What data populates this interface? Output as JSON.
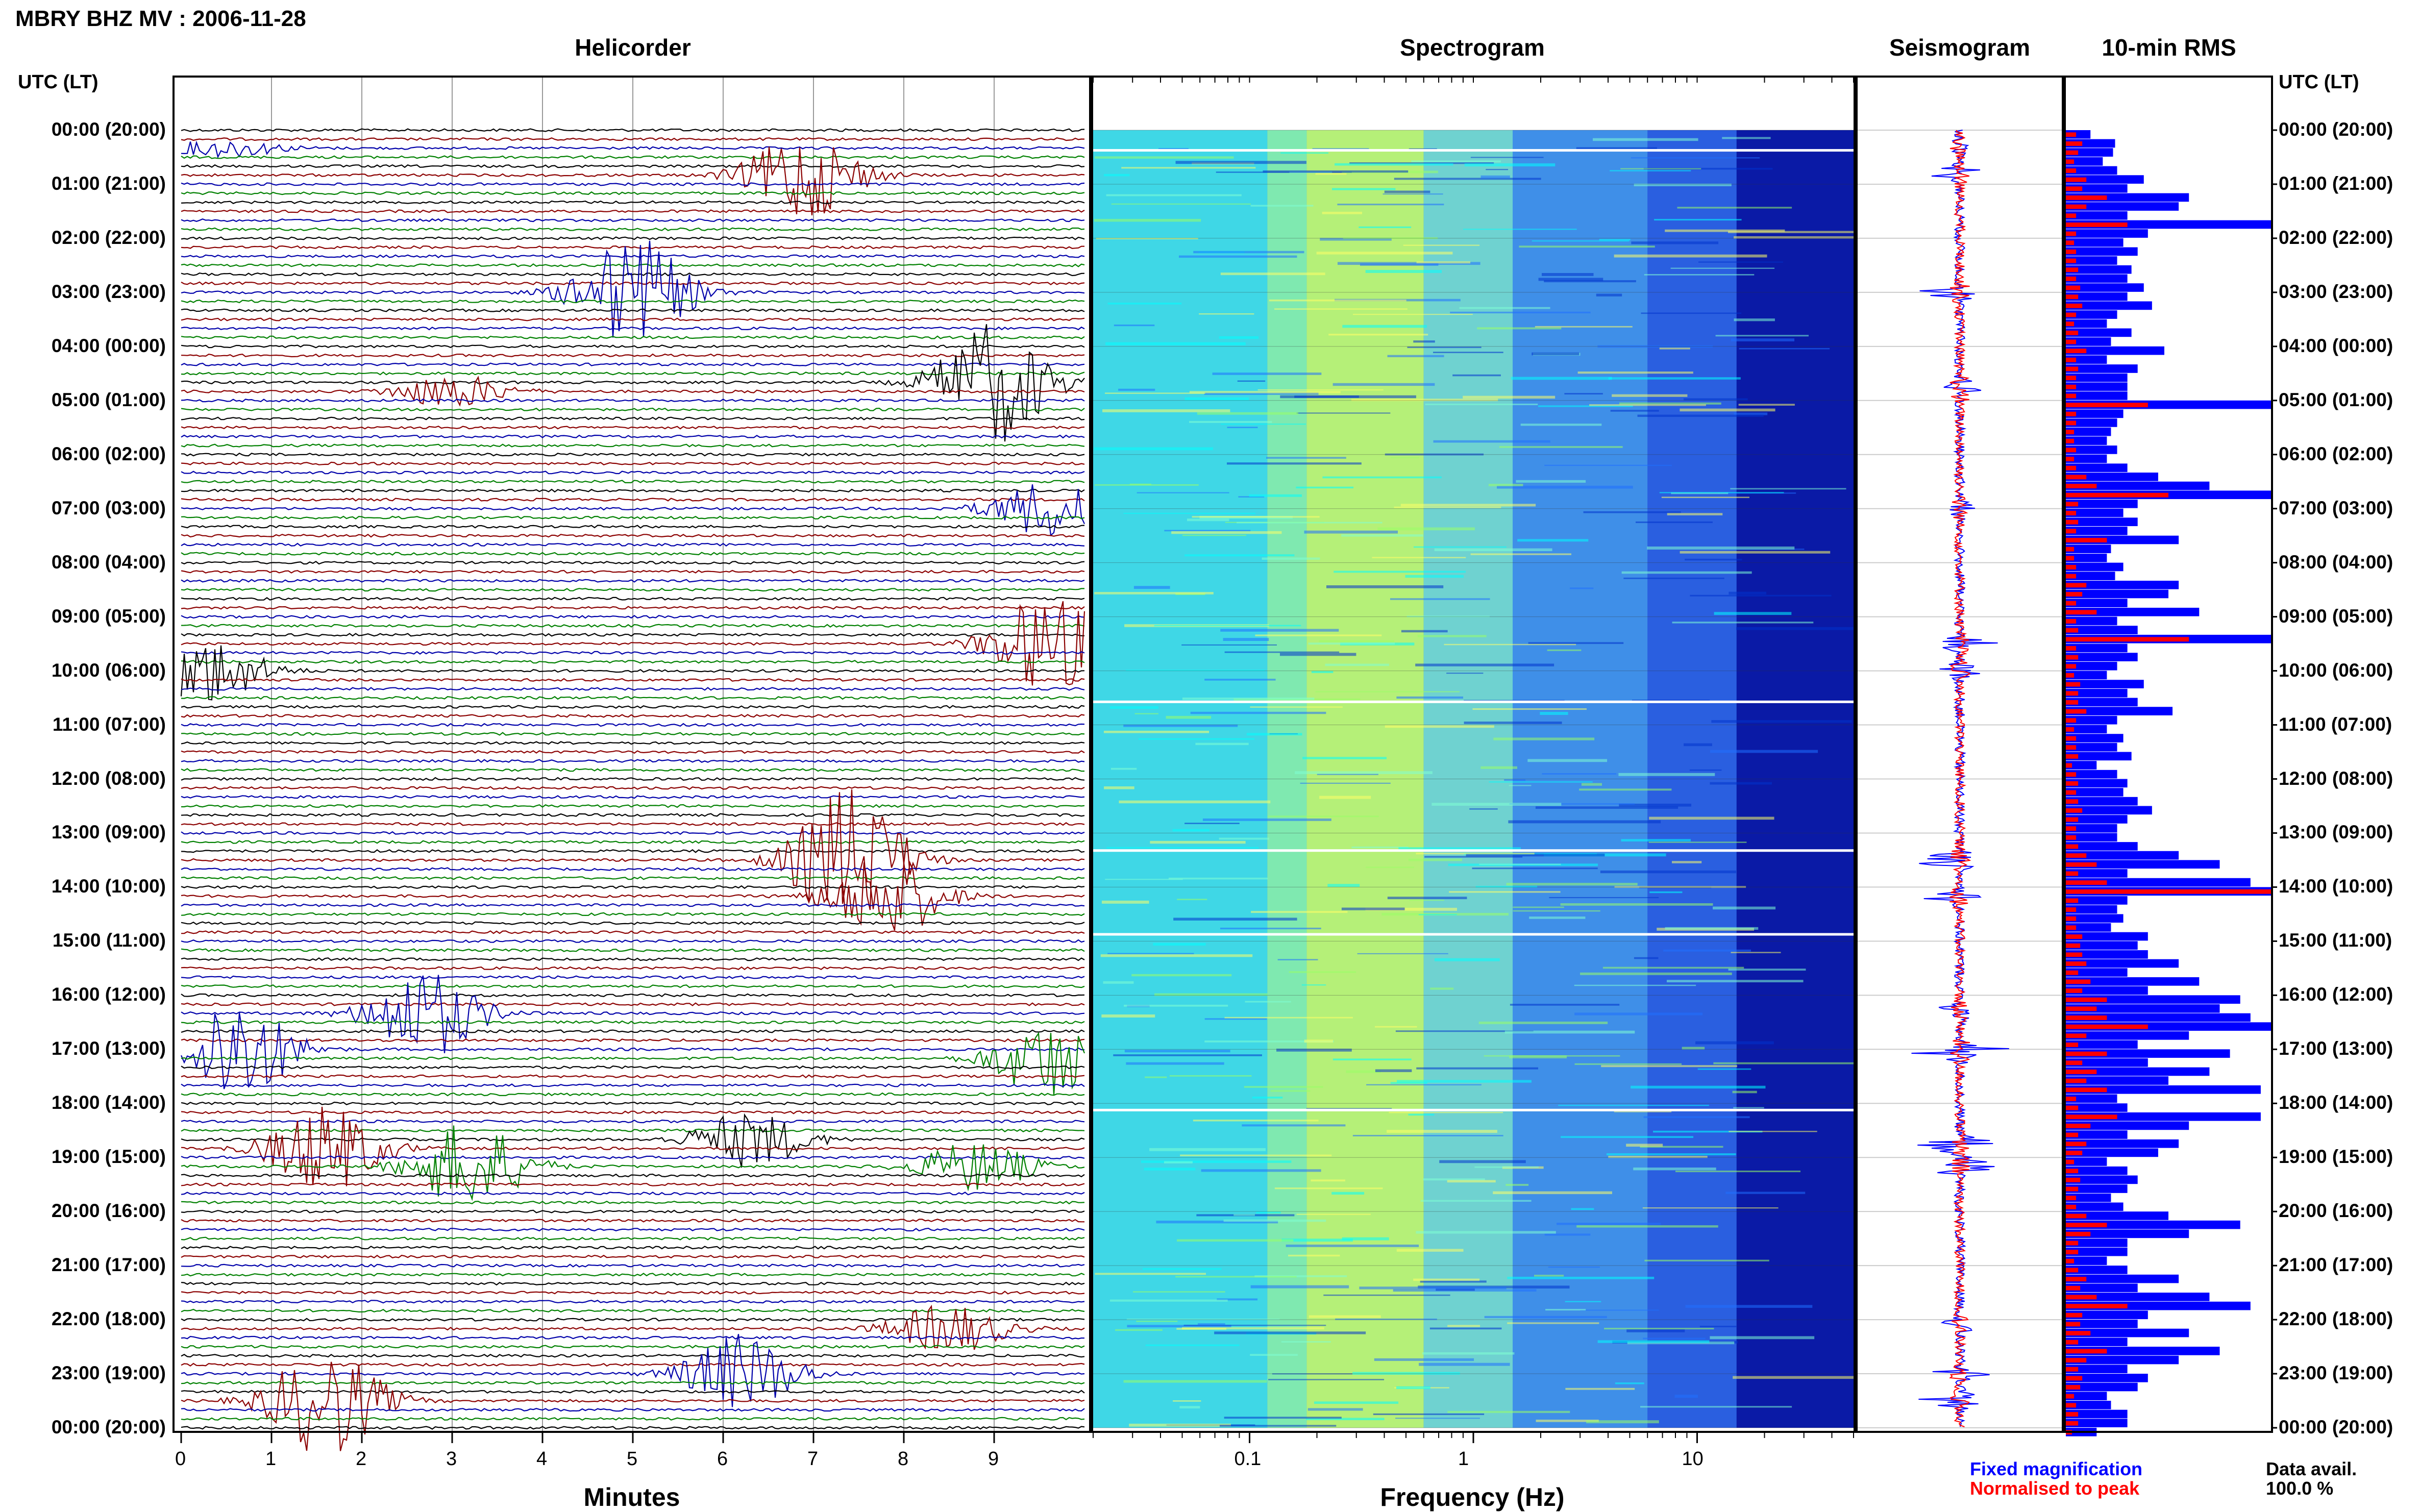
{
  "page": {
    "title": "MBRY BHZ MV : 2006-11-28"
  },
  "panels": {
    "helicorder": "Helicorder",
    "spectrogram": "Spectrogram",
    "seismogram": "Seismogram",
    "rms": "10-min RMS"
  },
  "axes": {
    "utc_header_left": "UTC (LT)",
    "utc_header_right": "UTC (LT)",
    "minutes_label": "Minutes",
    "frequency_label": "Frequency (Hz)",
    "minute_ticks": [
      "0",
      "1",
      "2",
      "3",
      "4",
      "5",
      "6",
      "7",
      "8",
      "9"
    ],
    "freq_ticks": [
      "0.1",
      "1",
      "10"
    ]
  },
  "time_labels": [
    "00:00 (20:00)",
    "01:00 (21:00)",
    "02:00 (22:00)",
    "03:00 (23:00)",
    "04:00 (00:00)",
    "05:00 (01:00)",
    "06:00 (02:00)",
    "07:00 (03:00)",
    "08:00 (04:00)",
    "09:00 (05:00)",
    "10:00 (06:00)",
    "11:00 (07:00)",
    "12:00 (08:00)",
    "13:00 (09:00)",
    "14:00 (10:00)",
    "15:00 (11:00)",
    "16:00 (12:00)",
    "17:00 (13:00)",
    "18:00 (14:00)",
    "19:00 (15:00)",
    "20:00 (16:00)",
    "21:00 (17:00)",
    "22:00 (18:00)",
    "23:00 (19:00)",
    "00:00 (20:00)"
  ],
  "legend": {
    "fixed": "Fixed magnification",
    "normalised": "Normalised to peak",
    "avail_label": "Data avail.",
    "avail_value": "100.0 %"
  },
  "colors": {
    "trace_colors": [
      "#000000",
      "#8b0000",
      "#0000aa",
      "#008000"
    ],
    "rms_fixed": "#0000ff",
    "rms_normalised": "#ff0000"
  },
  "chart_data": [
    {
      "type": "line",
      "title": "Helicorder",
      "xlabel": "Minutes",
      "xlim": [
        0,
        10
      ],
      "rows_per_hour": 6,
      "hours": 24,
      "events": [
        {
          "hour": 0.3,
          "minute": 0.5,
          "amp": 0.3
        },
        {
          "hour": 0.8,
          "minute": 6.9,
          "amp": 1.6
        },
        {
          "hour": 3.0,
          "minute": 5.0,
          "amp": 2.0
        },
        {
          "hour": 4.7,
          "minute": 9.0,
          "amp": 2.2
        },
        {
          "hour": 4.9,
          "minute": 3.0,
          "amp": 0.6
        },
        {
          "hour": 7.0,
          "minute": 9.6,
          "amp": 1.0
        },
        {
          "hour": 9.5,
          "minute": 9.6,
          "amp": 1.8
        },
        {
          "hour": 10.0,
          "minute": 0.3,
          "amp": 1.2
        },
        {
          "hour": 13.5,
          "minute": 7.4,
          "amp": 2.6
        },
        {
          "hour": 14.2,
          "minute": 7.8,
          "amp": 1.6
        },
        {
          "hour": 16.3,
          "minute": 2.7,
          "amp": 1.6
        },
        {
          "hour": 17.0,
          "minute": 0.6,
          "amp": 2.0
        },
        {
          "hour": 17.1,
          "minute": 9.6,
          "amp": 1.4
        },
        {
          "hour": 18.8,
          "minute": 1.6,
          "amp": 1.6
        },
        {
          "hour": 19.2,
          "minute": 3.2,
          "amp": 1.6
        },
        {
          "hour": 18.7,
          "minute": 6.3,
          "amp": 1.0
        },
        {
          "hour": 19.1,
          "minute": 8.8,
          "amp": 0.9
        },
        {
          "hour": 23.5,
          "minute": 1.6,
          "amp": 2.0
        },
        {
          "hour": 23.0,
          "minute": 6.2,
          "amp": 1.4
        },
        {
          "hour": 22.1,
          "minute": 8.5,
          "amp": 0.9
        }
      ]
    },
    {
      "type": "heatmap",
      "title": "Spectrogram",
      "xlabel": "Frequency (Hz)",
      "xscale": "log",
      "xlim": [
        0.02,
        50
      ],
      "colormap": [
        "#00ffff",
        "#aaff66",
        "#2f7fff",
        "#0000aa"
      ]
    },
    {
      "type": "line",
      "title": "Seismogram",
      "series": [
        {
          "name": "Fixed magnification",
          "color": "#0000ff"
        },
        {
          "name": "Normalised to peak",
          "color": "#ff0000"
        }
      ]
    },
    {
      "type": "bar",
      "title": "10-min RMS",
      "orientation": "horizontal",
      "bins_per_hour": 6,
      "values_fixed": [
        0.12,
        0.24,
        0.23,
        0.18,
        0.25,
        0.38,
        0.3,
        0.6,
        0.55,
        0.3,
        1.0,
        0.4,
        0.28,
        0.35,
        0.25,
        0.32,
        0.3,
        0.38,
        0.3,
        0.42,
        0.25,
        0.2,
        0.32,
        0.22,
        0.48,
        0.2,
        0.35,
        0.3,
        0.3,
        0.3,
        1.0,
        0.28,
        0.25,
        0.22,
        0.2,
        0.25,
        0.2,
        0.3,
        0.45,
        0.7,
        1.0,
        0.35,
        0.28,
        0.35,
        0.3,
        0.55,
        0.22,
        0.2,
        0.28,
        0.24,
        0.55,
        0.5,
        0.3,
        0.65,
        0.25,
        0.35,
        1.0,
        0.3,
        0.35,
        0.25,
        0.2,
        0.38,
        0.3,
        0.35,
        0.52,
        0.25,
        0.2,
        0.28,
        0.25,
        0.32,
        0.15,
        0.25,
        0.3,
        0.28,
        0.35,
        0.42,
        0.3,
        0.25,
        0.25,
        0.35,
        0.55,
        0.75,
        0.3,
        0.9,
        1.0,
        0.3,
        0.25,
        0.28,
        0.22,
        0.4,
        0.35,
        0.4,
        0.55,
        0.3,
        0.65,
        0.4,
        0.85,
        0.75,
        0.9,
        1.0,
        0.6,
        0.35,
        0.8,
        0.4,
        0.7,
        0.5,
        0.95,
        0.25,
        0.3,
        0.95,
        0.6,
        0.3,
        0.55,
        0.45,
        0.2,
        0.3,
        0.35,
        0.3,
        0.22,
        0.28,
        0.5,
        0.85,
        0.6,
        0.3,
        0.3,
        0.2,
        0.3,
        0.55,
        0.35,
        0.7,
        0.9,
        0.4,
        0.35,
        0.6,
        0.3,
        0.75,
        0.55,
        0.3,
        0.4,
        0.35,
        0.2,
        0.22,
        0.3,
        0.3,
        0.15
      ],
      "values_normalised": [
        0.05,
        0.08,
        0.06,
        0.04,
        0.05,
        0.1,
        0.08,
        0.2,
        0.1,
        0.05,
        0.3,
        0.05,
        0.04,
        0.05,
        0.05,
        0.06,
        0.05,
        0.07,
        0.06,
        0.08,
        0.05,
        0.04,
        0.06,
        0.05,
        0.1,
        0.05,
        0.06,
        0.05,
        0.05,
        0.05,
        0.4,
        0.05,
        0.05,
        0.04,
        0.04,
        0.05,
        0.04,
        0.05,
        0.1,
        0.15,
        0.5,
        0.06,
        0.05,
        0.06,
        0.05,
        0.2,
        0.04,
        0.04,
        0.05,
        0.05,
        0.1,
        0.08,
        0.05,
        0.15,
        0.05,
        0.06,
        0.6,
        0.05,
        0.06,
        0.05,
        0.04,
        0.07,
        0.06,
        0.06,
        0.1,
        0.05,
        0.04,
        0.05,
        0.05,
        0.06,
        0.03,
        0.05,
        0.06,
        0.05,
        0.06,
        0.08,
        0.06,
        0.05,
        0.05,
        0.06,
        0.1,
        0.15,
        0.06,
        0.2,
        1.0,
        0.06,
        0.05,
        0.05,
        0.05,
        0.08,
        0.07,
        0.08,
        0.1,
        0.06,
        0.12,
        0.08,
        0.2,
        0.15,
        0.2,
        0.4,
        0.1,
        0.06,
        0.2,
        0.08,
        0.15,
        0.1,
        0.2,
        0.05,
        0.06,
        0.25,
        0.12,
        0.06,
        0.1,
        0.08,
        0.04,
        0.06,
        0.07,
        0.06,
        0.05,
        0.05,
        0.1,
        0.2,
        0.12,
        0.06,
        0.06,
        0.04,
        0.06,
        0.1,
        0.07,
        0.15,
        0.3,
        0.08,
        0.07,
        0.12,
        0.06,
        0.2,
        0.1,
        0.06,
        0.08,
        0.07,
        0.04,
        0.05,
        0.06,
        0.06,
        0.03
      ]
    }
  ]
}
